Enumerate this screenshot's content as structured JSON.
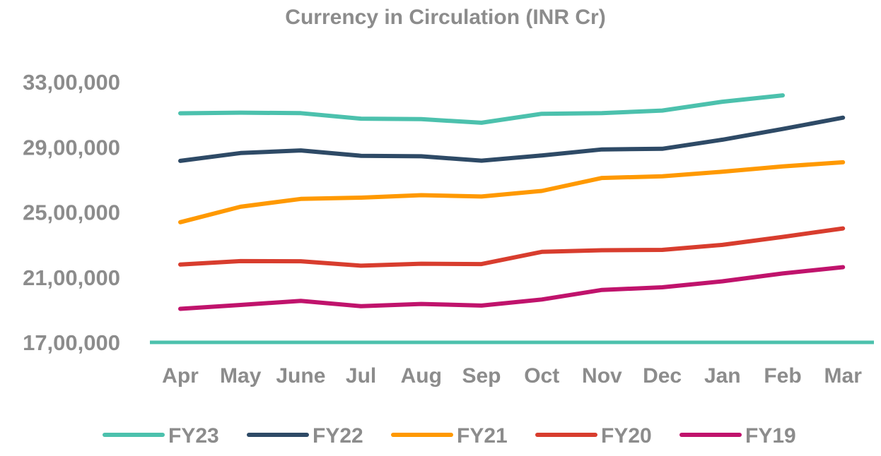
{
  "chart_data": {
    "type": "line",
    "title": "Currency in Circulation (INR Cr)",
    "xlabel": "",
    "ylabel": "",
    "categories": [
      "Apr",
      "May",
      "June",
      "Jul",
      "Aug",
      "Sep",
      "Oct",
      "Nov",
      "Dec",
      "Jan",
      "Feb",
      "Mar"
    ],
    "ylim": [
      1700000,
      3300000
    ],
    "yticks": [
      1700000,
      2100000,
      2500000,
      2900000,
      3300000
    ],
    "ytick_labels": [
      "17,00,000",
      "21,00,000",
      "25,00,000",
      "29,00,000",
      "33,00,000"
    ],
    "grid": false,
    "legend_position": "bottom",
    "baseline_color": "#4cc1ad",
    "series": [
      {
        "name": "FY23",
        "color": "#4cc1ad",
        "values": [
          3107000,
          3111000,
          3108000,
          3074000,
          3071000,
          3049000,
          3104000,
          3108000,
          3124000,
          3178000,
          3217000,
          null
        ]
      },
      {
        "name": "FY22",
        "color": "#2e4a66",
        "values": [
          2815000,
          2863000,
          2879000,
          2846000,
          2843000,
          2816000,
          2848000,
          2885000,
          2889000,
          2945000,
          3011000,
          3080000
        ]
      },
      {
        "name": "FY21",
        "color": "#ff9900",
        "values": [
          2438000,
          2533000,
          2581000,
          2589000,
          2604000,
          2596000,
          2630000,
          2710000,
          2720000,
          2748000,
          2781000,
          2806000
        ]
      },
      {
        "name": "FY20",
        "color": "#d83d2e",
        "values": [
          2178000,
          2199000,
          2198000,
          2171000,
          2183000,
          2181000,
          2256000,
          2266000,
          2268000,
          2299000,
          2348000,
          2400000
        ]
      },
      {
        "name": "FY19",
        "color": "#c0136c",
        "values": [
          1906000,
          1930000,
          1955000,
          1922000,
          1936000,
          1926000,
          1963000,
          2022000,
          2038000,
          2075000,
          2123000,
          2162000
        ]
      }
    ]
  }
}
